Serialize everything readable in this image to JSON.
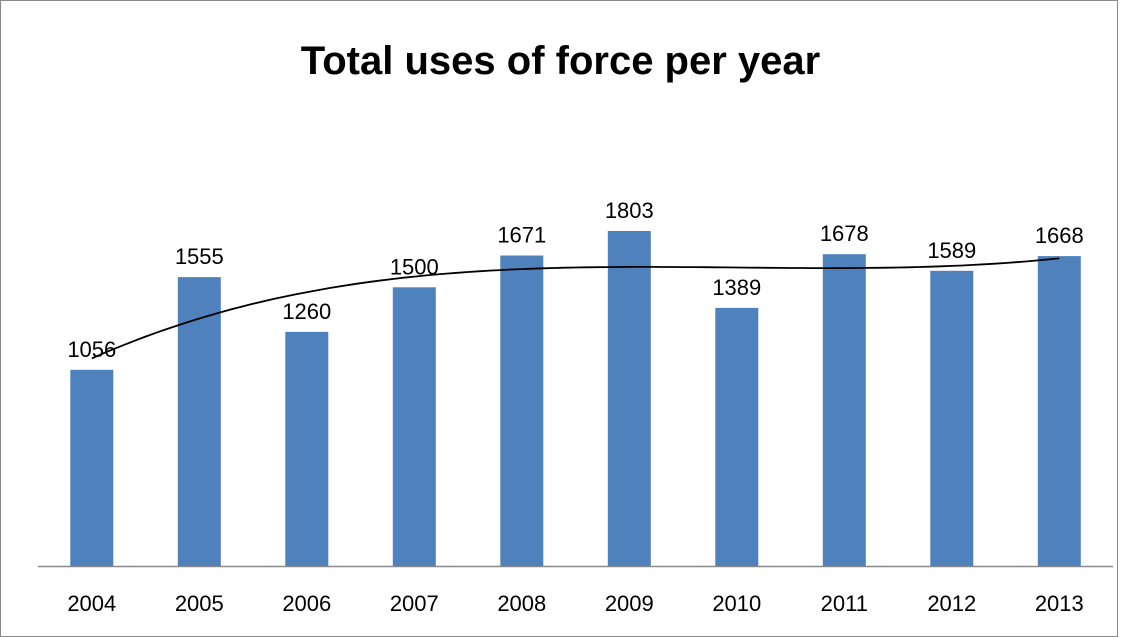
{
  "chart_data": {
    "type": "bar",
    "title": "Total uses of force per year",
    "categories": [
      "2004",
      "2005",
      "2006",
      "2007",
      "2008",
      "2009",
      "2010",
      "2011",
      "2012",
      "2013"
    ],
    "series": [
      {
        "values": [
          1056,
          1555,
          1260,
          1500,
          1671,
          1803,
          1389,
          1678,
          1589,
          1668
        ]
      }
    ],
    "data_labels": [
      "1056",
      "1555",
      "1260",
      "1500",
      "1671",
      "1803",
      "1389",
      "1678",
      "1589",
      "1668"
    ],
    "trendline": "polynomial",
    "ylim": [
      0,
      2000
    ],
    "grid": false,
    "legend": "none",
    "bar_color": "#4f81bd",
    "trendline_color": "#000000"
  }
}
